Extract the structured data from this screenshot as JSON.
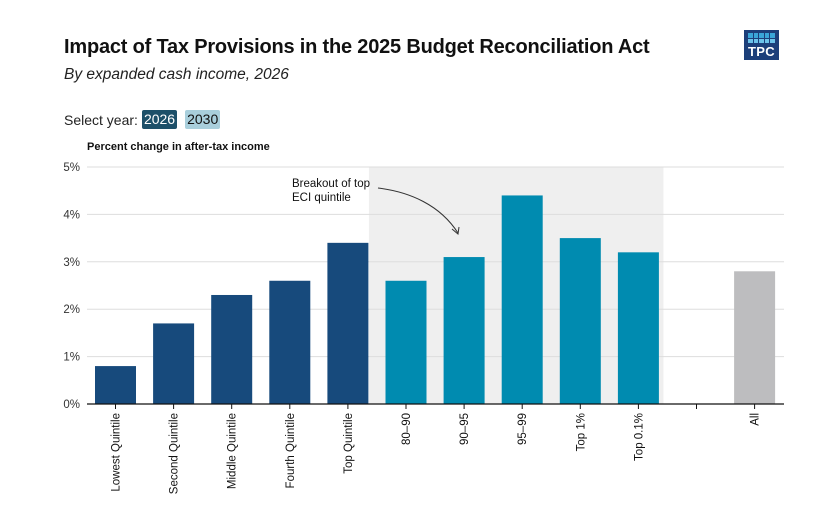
{
  "header": {
    "title": "Impact of Tax Provisions in the 2025 Budget Reconciliation Act",
    "subtitle": "By expanded cash income, 2026",
    "logo_text": "TPC"
  },
  "year_selector": {
    "label": "Select year:",
    "options": [
      {
        "label": "2026",
        "active": true
      },
      {
        "label": "2030",
        "active": false
      }
    ]
  },
  "colors": {
    "quintile_bar": "#174a7c",
    "breakout_bar": "#008bb0",
    "all_bar": "#bdbdbf",
    "breakout_band": "#efefef",
    "gridline": "#dddddd",
    "active_year": "#1d5069",
    "inactive_year": "#a9cfdc",
    "logo": "#1c3f7a"
  },
  "chart_data": {
    "type": "bar",
    "title": "Impact of Tax Provisions in the 2025 Budget Reconciliation Act",
    "subtitle": "By expanded cash income, 2026",
    "ylabel": "Percent change in after-tax income",
    "xlabel": "",
    "ylim": [
      0,
      5
    ],
    "yticks": [
      0,
      1,
      2,
      3,
      4,
      5
    ],
    "ytick_labels": [
      "0%",
      "1%",
      "2%",
      "3%",
      "4%",
      "5%"
    ],
    "grid": true,
    "categories": [
      "Lowest Quintile",
      "Second Quintile",
      "Middle Quintile",
      "Fourth Quintile",
      "Top Quintile",
      "80–90",
      "90–95",
      "95–99",
      "Top 1%",
      "Top 0.1%",
      "",
      "All"
    ],
    "values": [
      0.8,
      1.7,
      2.3,
      2.6,
      3.4,
      2.6,
      3.1,
      4.4,
      3.5,
      3.2,
      null,
      2.8
    ],
    "groups": [
      "quintile",
      "quintile",
      "quintile",
      "quintile",
      "quintile",
      "breakout",
      "breakout",
      "breakout",
      "breakout",
      "breakout",
      "blank",
      "all"
    ],
    "highlight_band": {
      "from_category": "80–90",
      "to_category": "Top 0.1%"
    },
    "annotation": {
      "text_lines": [
        "Breakout of top",
        "ECI quintile"
      ],
      "points_to": "90–95"
    }
  }
}
